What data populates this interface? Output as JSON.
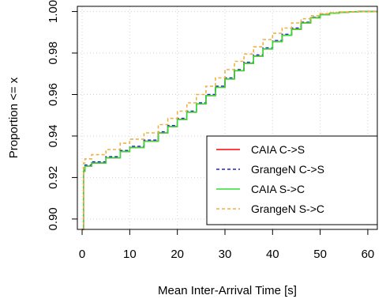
{
  "chart_data": {
    "type": "line",
    "title": "",
    "xlabel": "Mean Inter-Arrival Time [s]",
    "ylabel": "Proportion <= x",
    "xlim": [
      -1,
      62
    ],
    "ylim": [
      0.895,
      1.0025
    ],
    "xticks": [
      0,
      10,
      20,
      30,
      40,
      50,
      60
    ],
    "yticks": [
      0.9,
      0.92,
      0.94,
      0.96,
      0.98,
      1.0
    ],
    "ytick_labels": [
      "0.90",
      "0.92",
      "0.94",
      "0.96",
      "0.98",
      "1.00"
    ],
    "grid": true,
    "legend_position": "bottom-right",
    "series": [
      {
        "name": "CAIA C->S",
        "color": "#ff0000",
        "dash": "solid",
        "x": [
          0,
          0.3,
          0.6,
          2,
          5,
          8,
          10,
          13,
          16,
          18,
          20,
          22,
          24,
          26,
          28,
          30,
          32,
          34,
          36,
          38,
          40,
          42,
          44,
          46,
          48,
          50,
          52,
          54,
          56,
          58,
          60,
          62
        ],
        "y": [
          0.895,
          0.923,
          0.9255,
          0.927,
          0.9295,
          0.9325,
          0.9345,
          0.9375,
          0.9415,
          0.9445,
          0.948,
          0.9515,
          0.9555,
          0.9595,
          0.9635,
          0.9675,
          0.9715,
          0.975,
          0.9785,
          0.982,
          0.9855,
          0.9885,
          0.9915,
          0.9945,
          0.997,
          0.9985,
          0.9992,
          0.9996,
          0.9999,
          1.0,
          1.0,
          1.0
        ]
      },
      {
        "name": "GrangeN C->S",
        "color": "#2222cc",
        "dash": "dashed",
        "x": [
          0,
          0.3,
          0.6,
          2,
          5,
          8,
          10,
          13,
          16,
          18,
          20,
          22,
          24,
          26,
          28,
          30,
          32,
          34,
          36,
          38,
          40,
          42,
          44,
          46,
          48,
          50,
          52,
          54,
          56,
          58,
          60,
          62
        ],
        "y": [
          0.895,
          0.9235,
          0.926,
          0.9275,
          0.93,
          0.933,
          0.935,
          0.938,
          0.942,
          0.945,
          0.9485,
          0.952,
          0.956,
          0.96,
          0.964,
          0.968,
          0.972,
          0.9755,
          0.979,
          0.9825,
          0.986,
          0.989,
          0.992,
          0.9948,
          0.9972,
          0.9986,
          0.9993,
          0.9997,
          0.9999,
          1.0,
          1.0,
          1.0
        ]
      },
      {
        "name": "CAIA S->C",
        "color": "#33dd33",
        "dash": "solid",
        "x": [
          0,
          0.3,
          0.6,
          2,
          5,
          8,
          10,
          13,
          16,
          18,
          20,
          22,
          24,
          26,
          28,
          30,
          32,
          34,
          36,
          38,
          40,
          42,
          44,
          46,
          48,
          50,
          52,
          54,
          56,
          58,
          60,
          62
        ],
        "y": [
          0.895,
          0.923,
          0.9255,
          0.927,
          0.9295,
          0.9325,
          0.9345,
          0.9375,
          0.9415,
          0.9445,
          0.948,
          0.9515,
          0.9555,
          0.9595,
          0.9635,
          0.9675,
          0.9715,
          0.975,
          0.9785,
          0.982,
          0.9855,
          0.9885,
          0.9915,
          0.9945,
          0.997,
          0.9985,
          0.9992,
          0.9996,
          0.9999,
          1.0,
          1.0,
          1.0
        ]
      },
      {
        "name": "GrangeN S->C",
        "color": "#f0b040",
        "dash": "dashed",
        "x": [
          0,
          0.3,
          0.6,
          2,
          5,
          8,
          10,
          13,
          16,
          18,
          20,
          22,
          24,
          26,
          28,
          30,
          32,
          34,
          36,
          38,
          40,
          42,
          44,
          46,
          48,
          50,
          52,
          54,
          56,
          58,
          60,
          62
        ],
        "y": [
          0.895,
          0.927,
          0.929,
          0.931,
          0.9335,
          0.9365,
          0.9385,
          0.9415,
          0.9455,
          0.9485,
          0.952,
          0.956,
          0.96,
          0.964,
          0.968,
          0.972,
          0.976,
          0.9795,
          0.983,
          0.9865,
          0.9895,
          0.992,
          0.9945,
          0.9965,
          0.998,
          0.999,
          0.9995,
          0.9998,
          0.9999,
          1.0,
          1.0,
          1.0
        ]
      }
    ]
  }
}
